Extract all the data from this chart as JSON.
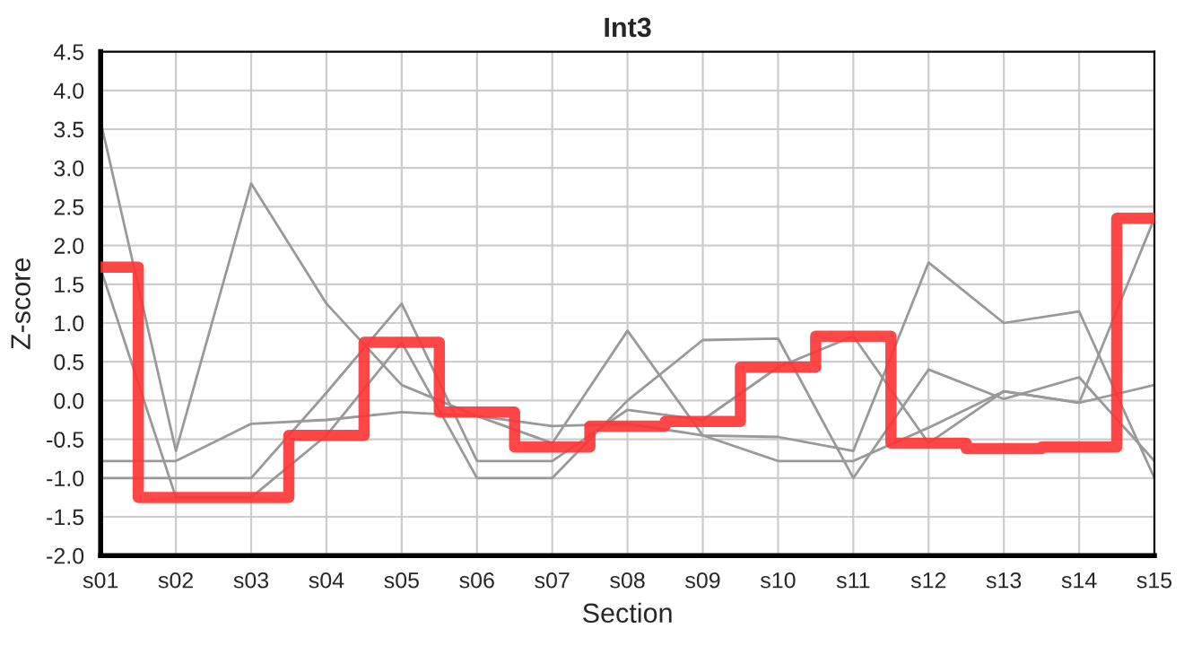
{
  "chart_data": {
    "type": "line",
    "title": "Int3",
    "xlabel": "Section",
    "ylabel": "Z-score",
    "categories": [
      "s01",
      "s02",
      "s03",
      "s04",
      "s05",
      "s06",
      "s07",
      "s08",
      "s09",
      "s10",
      "s11",
      "s12",
      "s13",
      "s14",
      "s15"
    ],
    "series": [
      {
        "color": "#999999",
        "values": [
          3.6,
          -0.65,
          2.8,
          1.25,
          0.2,
          -0.2,
          -0.55,
          0.9,
          -0.45,
          -0.47,
          -0.65,
          1.78,
          1.0,
          1.15,
          -1.0
        ]
      },
      {
        "color": "#999999",
        "values": [
          1.7,
          -1.25,
          -1.25,
          -0.45,
          0.75,
          -1.0,
          -1.0,
          0.0,
          0.78,
          0.8,
          -1.0,
          0.4,
          0.02,
          0.3,
          -0.78
        ]
      },
      {
        "color": "#999999",
        "values": [
          -1.0,
          -1.0,
          -1.0,
          0.1,
          1.25,
          -0.78,
          -0.78,
          -0.12,
          -0.25,
          0.43,
          0.83,
          -0.55,
          0.12,
          -0.03,
          2.35
        ]
      },
      {
        "color": "#999999",
        "values": [
          -0.78,
          -0.78,
          -0.3,
          -0.25,
          -0.15,
          -0.2,
          -0.33,
          -0.3,
          -0.45,
          -0.78,
          -0.78,
          -0.35,
          0.12,
          -0.03,
          0.2
        ]
      },
      {
        "type": "step",
        "color": "#ff3333",
        "values": [
          1.72,
          -1.25,
          -1.25,
          -0.45,
          0.75,
          -0.15,
          -0.6,
          -0.33,
          -0.27,
          0.43,
          0.83,
          -0.55,
          -0.62,
          -0.6,
          2.35
        ]
      }
    ],
    "ylim": [
      -2.0,
      4.5
    ],
    "yticks": [
      {
        "value": -2.0,
        "label": "-2.0"
      },
      {
        "value": -1.5,
        "label": "-1.5"
      },
      {
        "value": -1.0,
        "label": "-1.0"
      },
      {
        "value": -0.5,
        "label": "-0.5"
      },
      {
        "value": 0.0,
        "label": "0.0"
      },
      {
        "value": 0.5,
        "label": "0.5"
      },
      {
        "value": 1.0,
        "label": "1.0"
      },
      {
        "value": 1.5,
        "label": "1.5"
      },
      {
        "value": 2.0,
        "label": "2.0"
      },
      {
        "value": 2.5,
        "label": "2.5"
      },
      {
        "value": 3.0,
        "label": "3.0"
      },
      {
        "value": 3.5,
        "label": "3.5"
      },
      {
        "value": 4.0,
        "label": "4.0"
      },
      {
        "value": 4.5,
        "label": "4.5"
      }
    ],
    "grid": true,
    "marker": "none",
    "line_style": "solid"
  }
}
